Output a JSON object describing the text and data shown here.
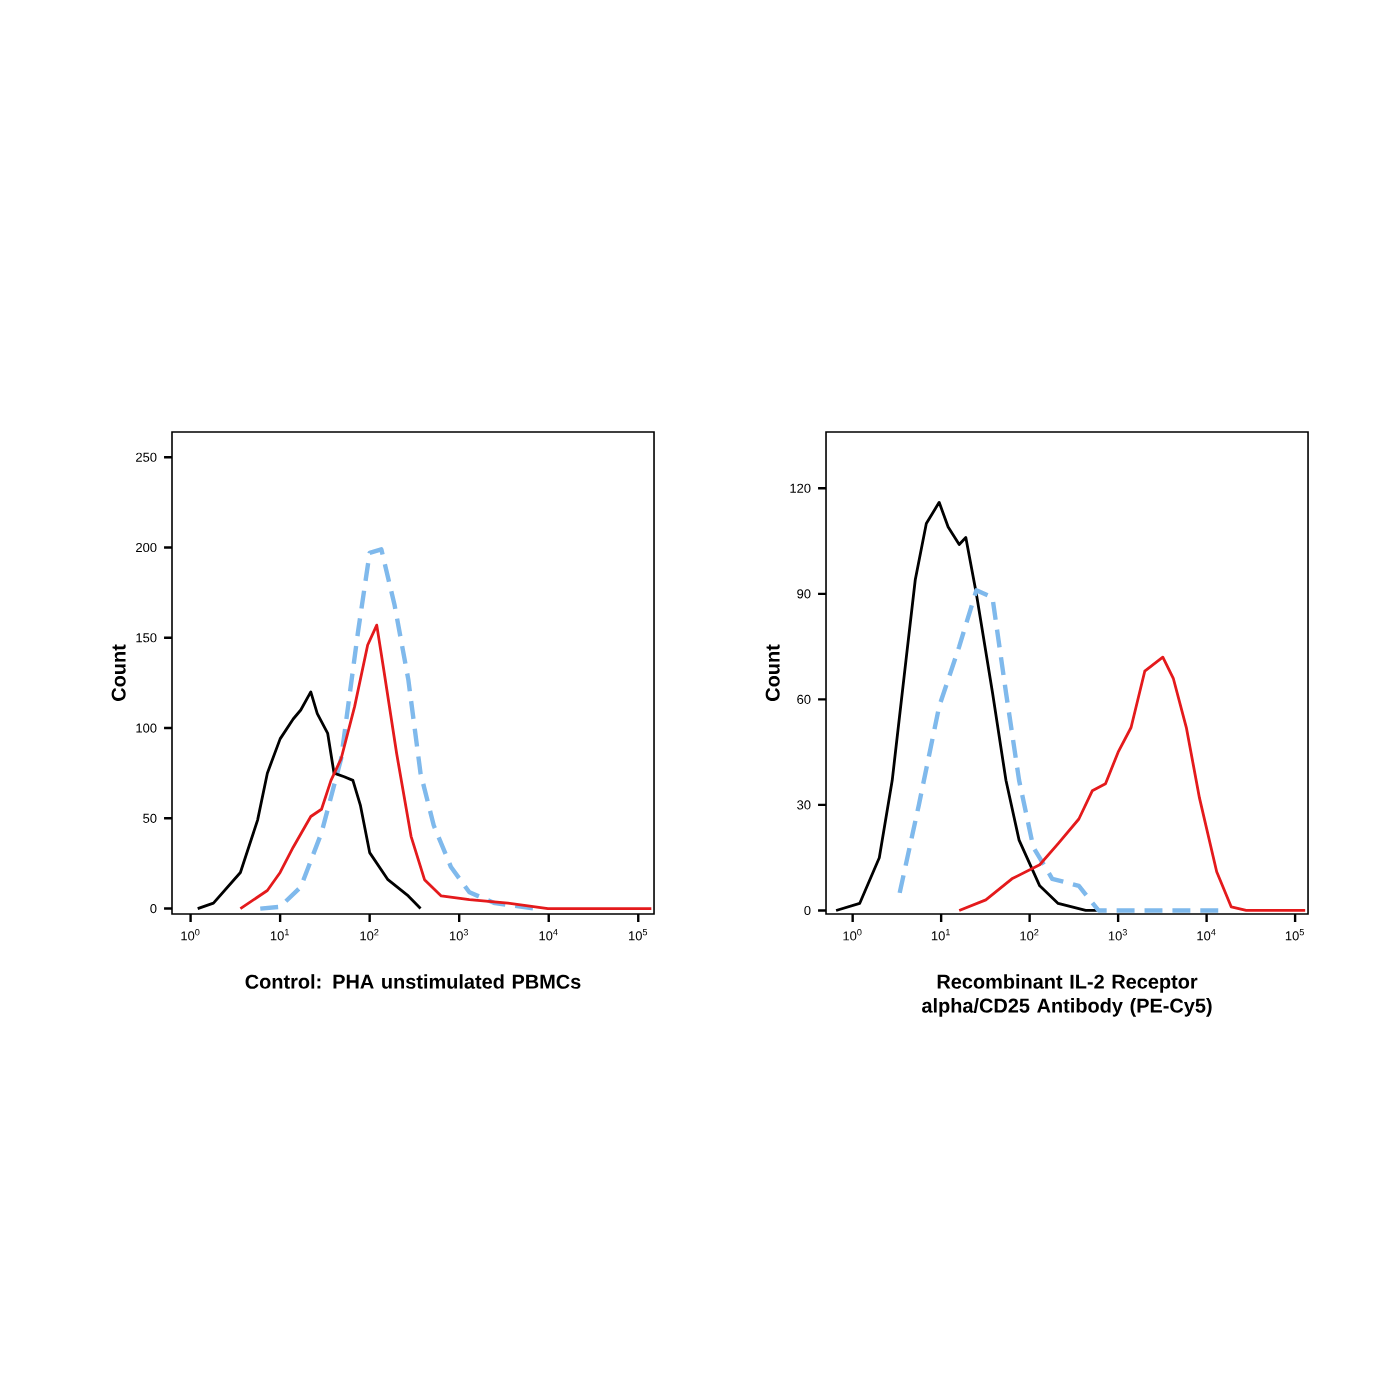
{
  "chart_data": [
    {
      "type": "line",
      "xlabel": "Control: PHA unstimulated PBMCs",
      "ylabel": "Count",
      "log": "x",
      "grid": false,
      "marker": "none",
      "xlim": [
        0.62,
        150000
      ],
      "ylim": [
        -3,
        264
      ],
      "xticks": [
        {
          "value": 1,
          "label": "10$^{0}$"
        },
        {
          "value": 10,
          "label": "10$^{1}$"
        },
        {
          "value": 100,
          "label": "10$^{2}$"
        },
        {
          "value": 1000,
          "label": "10$^{3}$"
        },
        {
          "value": 10000,
          "label": "10$^{4}$"
        },
        {
          "value": 100000,
          "label": "10$^{5}$"
        }
      ],
      "yticks": [
        0,
        50,
        100,
        150,
        200,
        250
      ],
      "series": [
        {
          "color": "#7fb9ec",
          "line_style": "dashed",
          "x": [
            6,
            10,
            17,
            29,
            48,
            74,
            100,
            135,
            190,
            270,
            370,
            520,
            810,
            1300,
            2500,
            6900
          ],
          "values": [
            0,
            1,
            12,
            42,
            83,
            153,
            197,
            199,
            168,
            127,
            75,
            46,
            23,
            9,
            3,
            0
          ]
        },
        {
          "color": "#000000",
          "line_style": "solid",
          "x": [
            1.2,
            1.8,
            3.6,
            5.6,
            7.2,
            10,
            14,
            17,
            22,
            26,
            34,
            40,
            52,
            65,
            79,
            100,
            160,
            270,
            370
          ],
          "values": [
            0,
            3,
            20,
            49,
            75,
            94,
            105,
            110,
            120,
            108,
            97,
            75,
            73,
            71,
            57,
            31,
            16,
            7,
            0
          ]
        },
        {
          "color": "#e41a1c",
          "line_style": "solid",
          "x": [
            3.6,
            7.2,
            10,
            14,
            22,
            29,
            37,
            48,
            68,
            95,
            120,
            145,
            200,
            290,
            410,
            630,
            1300,
            3500,
            9800,
            39000,
            140000
          ],
          "values": [
            0,
            10,
            20,
            34,
            51,
            55,
            71,
            83,
            112,
            146,
            157,
            131,
            86,
            40,
            16,
            7,
            5,
            3,
            0,
            0,
            0
          ]
        }
      ]
    },
    {
      "type": "line",
      "xlabel": "Recombinant IL-2 Receptor alpha/CD25 Antibody (PE-Cy5)",
      "ylabel": "Count",
      "log": "x",
      "grid": false,
      "marker": "none",
      "xlim": [
        0.5,
        140000
      ],
      "ylim": [
        -1,
        136
      ],
      "xticks": [
        {
          "value": 1,
          "label": "10$^{0}$"
        },
        {
          "value": 10,
          "label": "10$^{1}$"
        },
        {
          "value": 100,
          "label": "10$^{2}$"
        },
        {
          "value": 1000,
          "label": "10$^{3}$"
        },
        {
          "value": 10000,
          "label": "10$^{4}$"
        },
        {
          "value": 100000,
          "label": "10$^{5}$"
        }
      ],
      "yticks": [
        0,
        30,
        60,
        90,
        120
      ],
      "series": [
        {
          "color": "#000000",
          "line_style": "solid",
          "x": [
            0.65,
            1.2,
            2,
            2.8,
            4,
            5.1,
            6.8,
            9.5,
            12,
            16,
            19,
            25,
            38,
            54,
            76,
            130,
            210,
            430,
            720
          ],
          "values": [
            0,
            2,
            15,
            37,
            71,
            94,
            110,
            116,
            109,
            104,
            106,
            90,
            62,
            37,
            20,
            7,
            2,
            0,
            0
          ]
        },
        {
          "color": "#7fb9ec",
          "line_style": "dashed",
          "x": [
            3.4,
            5.6,
            9.5,
            16,
            25,
            38,
            54,
            76,
            110,
            180,
            360,
            600,
            14000
          ],
          "values": [
            5,
            30,
            58,
            75,
            91,
            89,
            62,
            37,
            18,
            9,
            7,
            0,
            0
          ]
        },
        {
          "color": "#e41a1c",
          "line_style": "solid",
          "x": [
            16,
            32,
            63,
            130,
            210,
            360,
            510,
            720,
            1000,
            1400,
            2000,
            3200,
            4200,
            5900,
            8300,
            13000,
            19000,
            28000,
            130000
          ],
          "values": [
            0,
            3,
            9,
            13,
            19,
            26,
            34,
            36,
            45,
            52,
            68,
            72,
            66,
            52,
            32,
            11,
            1,
            0,
            0
          ]
        }
      ]
    }
  ]
}
